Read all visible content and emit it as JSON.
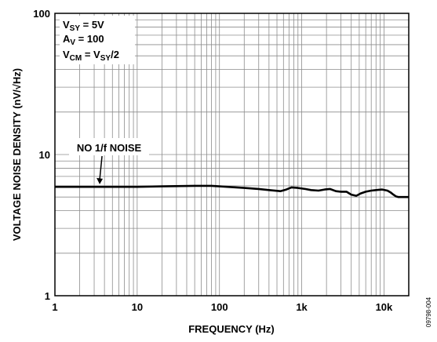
{
  "chart_data": {
    "type": "line",
    "xlabel": "FREQUENCY (Hz)",
    "ylabel": "VOLTAGE NOISE DENSITY (nV/√Hz)",
    "x_scale": "log",
    "y_scale": "log",
    "xlim": [
      1,
      20000
    ],
    "ylim": [
      1,
      100
    ],
    "x_ticks": [
      {
        "value": 1,
        "label": "1"
      },
      {
        "value": 10,
        "label": "10"
      },
      {
        "value": 100,
        "label": "100"
      },
      {
        "value": 1000,
        "label": "1k"
      },
      {
        "value": 10000,
        "label": "10k"
      }
    ],
    "y_ticks": [
      {
        "value": 1,
        "label": "1"
      },
      {
        "value": 10,
        "label": "10"
      },
      {
        "value": 100,
        "label": "100"
      }
    ],
    "grid": true,
    "conditions": [
      {
        "base": "V",
        "sub": "SY",
        "rest": " = 5V"
      },
      {
        "base": "A",
        "sub": "V",
        "rest": " = 100"
      },
      {
        "base": "V",
        "sub": "CM",
        "rest": " = V",
        "sub2": "SY",
        "rest2": "/2"
      }
    ],
    "annotation": {
      "text": "NO 1/f NOISE",
      "x": 3.5,
      "y": 6.0
    },
    "figure_id": "09798-004",
    "series": [
      {
        "x": [
          1,
          2,
          5,
          10,
          20,
          50,
          80,
          100,
          200,
          300,
          400,
          550,
          650,
          750,
          900,
          1100,
          1300,
          1600,
          1900,
          2200,
          2600,
          3000,
          3500,
          4000,
          4600,
          5200,
          6000,
          7000,
          8000,
          9500,
          11000,
          12000,
          13000,
          14000,
          15000,
          17000,
          20000
        ],
        "y": [
          5.9,
          5.9,
          5.9,
          5.9,
          5.95,
          6.0,
          6.0,
          5.95,
          5.8,
          5.7,
          5.6,
          5.5,
          5.65,
          5.85,
          5.8,
          5.7,
          5.6,
          5.55,
          5.65,
          5.7,
          5.5,
          5.45,
          5.45,
          5.2,
          5.1,
          5.3,
          5.45,
          5.55,
          5.6,
          5.65,
          5.55,
          5.4,
          5.2,
          5.05,
          5.0,
          5.0,
          5.0
        ]
      }
    ]
  }
}
